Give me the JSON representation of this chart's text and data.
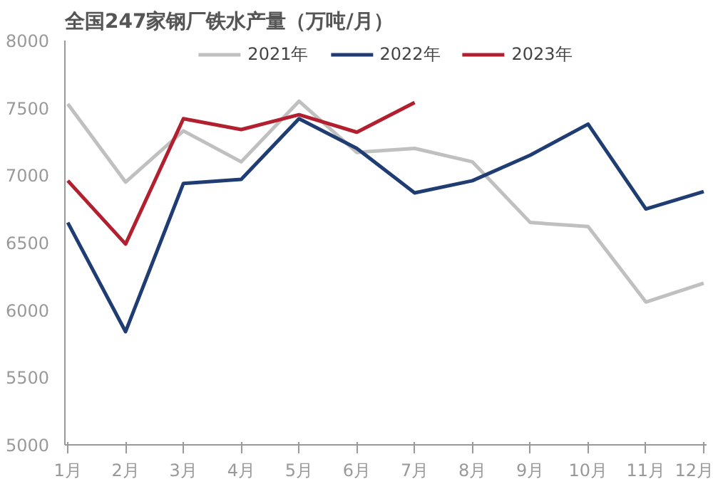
{
  "chart_data": {
    "type": "line",
    "title": "全国247家钢厂铁水产量（万吨/月）",
    "categories": [
      "1月",
      "2月",
      "3月",
      "4月",
      "5月",
      "6月",
      "7月",
      "8月",
      "9月",
      "10月",
      "11月",
      "12月"
    ],
    "series": [
      {
        "name": "2021年",
        "color": "#c0c0c0",
        "values": [
          7530,
          6950,
          7330,
          7100,
          7550,
          7170,
          7200,
          7100,
          6650,
          6620,
          6060,
          6200
        ]
      },
      {
        "name": "2022年",
        "color": "#1f3d73",
        "values": [
          6650,
          5840,
          6940,
          6970,
          7420,
          7200,
          6870,
          6960,
          7150,
          7380,
          6750,
          6880
        ]
      },
      {
        "name": "2023年",
        "color": "#b22030",
        "values": [
          6960,
          6490,
          7420,
          7340,
          7450,
          7320,
          7540,
          null,
          null,
          null,
          null,
          null
        ]
      }
    ],
    "ylim": [
      5000,
      8000
    ],
    "yticks": [
      5000,
      5500,
      6000,
      6500,
      7000,
      7500,
      8000
    ],
    "grid": false,
    "legend": "top",
    "marker": "none",
    "line_style": "solid"
  }
}
